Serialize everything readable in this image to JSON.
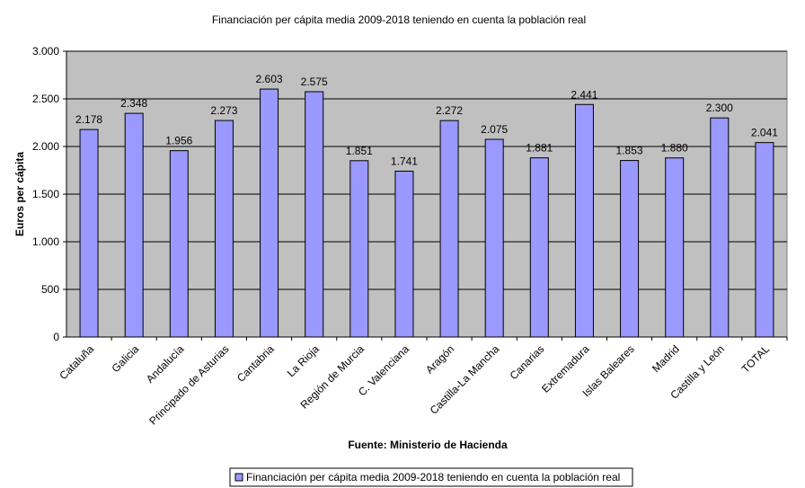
{
  "chart_data": {
    "type": "bar",
    "title": "Financiación per cápita media 2009-2018 teniendo en cuenta la población real",
    "xlabel": "Fuente: Ministerio de Hacienda",
    "ylabel": "Euros per cápita",
    "ylim": [
      0,
      3000
    ],
    "yticks": [
      0,
      500,
      1000,
      1500,
      2000,
      2500,
      3000
    ],
    "ytick_labels": [
      "0",
      "500",
      "1.000",
      "1.500",
      "2.000",
      "2.500",
      "3.000"
    ],
    "categories": [
      "Cataluña",
      "Galicia",
      "Andalucía",
      "Principado de Asturias",
      "Cantabria",
      "La Rioja",
      "Región de Murcia",
      "C. Valenciana",
      "Aragón",
      "Castilla-La Mancha",
      "Canarias",
      "Extremadura",
      "Islas Baleares",
      "Madrid",
      "Castilla y León",
      "TOTAL"
    ],
    "values": [
      2178,
      2348,
      1956,
      2273,
      2603,
      2575,
      1851,
      1741,
      2272,
      2075,
      1881,
      2441,
      1853,
      1880,
      2300,
      2041
    ],
    "value_labels": [
      "2.178",
      "2.348",
      "1.956",
      "2.273",
      "2.603",
      "2.575",
      "1.851",
      "1.741",
      "2.272",
      "2.075",
      "1.881",
      "2.441",
      "1.853",
      "1.880",
      "2.300",
      "2.041"
    ],
    "series": [
      {
        "name": "Financiación per cápita media 2009-2018 teniendo en cuenta la población real"
      }
    ],
    "legend": "bottom",
    "grid": true,
    "colors": {
      "bar": "#9999ff",
      "bar_border": "#000000",
      "plot_bg": "#c0c0c0",
      "grid": "#000000"
    }
  }
}
